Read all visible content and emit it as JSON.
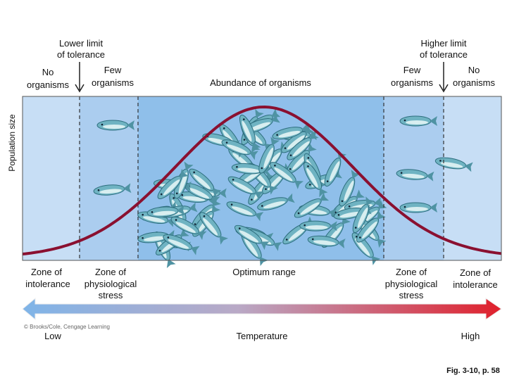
{
  "header": {
    "lower_limit": [
      "Lower limit",
      "of tolerance"
    ],
    "higher_limit": [
      "Higher limit",
      "of tolerance"
    ],
    "left_none": [
      "No",
      "organisms"
    ],
    "left_few": [
      "Few",
      "organisms"
    ],
    "abundance": "Abundance of organisms",
    "right_few": [
      "Few",
      "organisms"
    ],
    "right_none": [
      "No",
      "organisms"
    ]
  },
  "y_axis_label": "Population size",
  "zones": {
    "left_intolerance": [
      "Zone of",
      "intolerance"
    ],
    "left_stress": [
      "Zone of",
      "physiological",
      "stress"
    ],
    "optimum": "Optimum range",
    "right_stress": [
      "Zone of",
      "physiological",
      "stress"
    ],
    "right_intolerance": [
      "Zone of",
      "intolerance"
    ]
  },
  "x_axis": {
    "low": "Low",
    "label": "Temperature",
    "high": "High"
  },
  "copyright": "© Brooks/Cole, Cengage Learning",
  "figure_ref": "Fig. 3-10, p. 58"
}
